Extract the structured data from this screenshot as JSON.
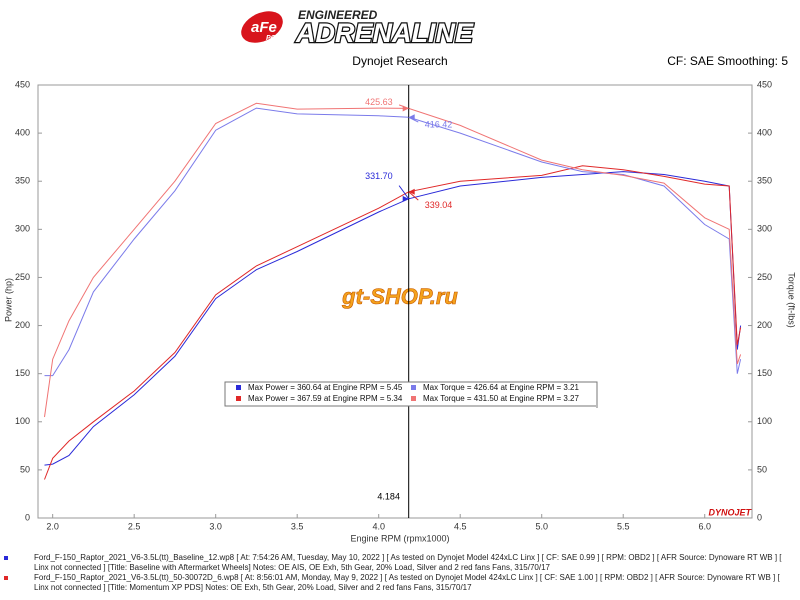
{
  "header": {
    "logo_brand": "aFe",
    "logo_power": "POWER",
    "logo_top": "ENGINEERED",
    "logo_main": "ADRENALINE",
    "company": "Dynojet Research",
    "settings": "CF: SAE Smoothing: 5"
  },
  "chart_data": {
    "type": "line",
    "y_label": "Power (hp)",
    "y2_label": "Torque (ft-lbs)",
    "x_label": "Engine RPM (rpmx1000)",
    "watermark": "gt-SHOP.ru",
    "brand_mark": "DYNOJET",
    "x": [
      1.95,
      2.0,
      2.1,
      2.25,
      2.5,
      2.75,
      3.0,
      3.25,
      3.5,
      4.0,
      4.184,
      4.5,
      5.0,
      5.25,
      5.5,
      5.75,
      6.0,
      6.15,
      6.2,
      6.22
    ],
    "xlim": [
      1.91,
      6.29
    ],
    "xticks": [
      {
        "value": 2,
        "label": "2.0"
      },
      2.5,
      {
        "value": 3,
        "label": "3.0"
      },
      3.5,
      {
        "value": 4,
        "label": "4.0"
      },
      4.5,
      {
        "value": 5,
        "label": "5.0"
      },
      5.5,
      {
        "value": 6,
        "label": "6.0"
      }
    ],
    "ylim": [
      0,
      450
    ],
    "yticks": [
      0,
      50,
      100,
      150,
      200,
      250,
      300,
      350,
      400,
      450
    ],
    "y2lim": [
      0,
      450
    ],
    "y2ticks": [
      0,
      50,
      100,
      150,
      200,
      250,
      300,
      350,
      400,
      450
    ],
    "grid": false,
    "cursor_x": 4.184,
    "series": [
      {
        "name": "Max Power = 360.64 at Engine RPM = 5.45",
        "color": "#2a2ad8",
        "axis": "y",
        "values": [
          55,
          56,
          65,
          95,
          128,
          168,
          228,
          258,
          277,
          318,
          331.7,
          345,
          354,
          357,
          360,
          357,
          350,
          345,
          175,
          200
        ],
        "cursor_value": {
          "value": 331.7,
          "label": "331.70"
        }
      },
      {
        "name": "Max Power = 367.59 at Engine RPM = 5.34",
        "color": "#e02828",
        "axis": "y",
        "values": [
          40,
          62,
          80,
          100,
          132,
          172,
          232,
          262,
          282,
          322,
          339.04,
          350,
          356,
          366,
          362,
          355,
          347,
          345,
          180,
          198
        ],
        "cursor_value": 339.04
      },
      {
        "name": "Max Torque = 426.64 at Engine RPM = 3.21",
        "color": "#7b7bea",
        "axis": "y2",
        "values": [
          148,
          148,
          175,
          235,
          290,
          340,
          403,
          426,
          420,
          418,
          416.42,
          400,
          370,
          360,
          357,
          345,
          305,
          290,
          150,
          165
        ],
        "cursor_value": 416.42
      },
      {
        "name": "Max Torque = 431.50 at Engine RPM = 3.27",
        "color": "#f07474",
        "axis": "y2",
        "values": [
          105,
          165,
          205,
          250,
          300,
          350,
          410,
          431,
          425,
          426,
          425.63,
          408,
          372,
          362,
          356,
          348,
          312,
          300,
          160,
          170
        ],
        "cursor_value": 425.63
      }
    ]
  },
  "footer": {
    "runs": [
      "Ford_F-150_Raptor_2021_V6-3.5L(tt)_Baseline_12.wp8 [ At: 7:54:26 AM, Tuesday, May 10, 2022 ] [ As tested on Dynojet Model 424xLC Linx ] [ CF: SAE 0.99 ] [ RPM: OBD2 ] [ AFR Source: Dynoware RT WB ] [ Linx not connected ] [Title: Baseline with Aftermarket Wheels]  Notes: OE AIS, OE Exh, 5th Gear, 20% Load, Silver and 2 red fans Fans, 315/70/17",
      "Ford_F-150_Raptor_2021_V6-3.5L(tt)_50-30072D_6.wp8 [ At: 8:56:01 AM, Monday, May 9, 2022 ] [ As tested on Dynojet Model 424xLC Linx ] [ CF: SAE 1.00 ] [ RPM: OBD2 ] [ AFR Source: Dynoware RT WB ] [ Linx not connected ] [Title: Momentum XP PDS]  Notes: OE Exh, 5th Gear, 20% Load, Silver and 2 red fans Fans, 315/70/17"
    ]
  }
}
